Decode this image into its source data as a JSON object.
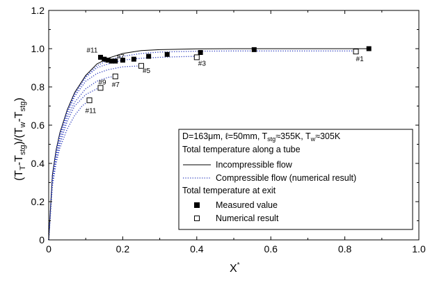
{
  "chart_data": {
    "type": "line",
    "xlabel": "X*",
    "ylabel": "(T_T-T_stg)/(T_w-T_stg)",
    "xlim": [
      0,
      1.0
    ],
    "ylim": [
      0,
      1.2
    ],
    "x_ticks": [
      "0",
      "0.2",
      "0.4",
      "0.6",
      "0.8",
      "1.0"
    ],
    "y_ticks": [
      "0",
      "0.2",
      "0.4",
      "0.6",
      "0.8",
      "1.0",
      "1.2"
    ],
    "grid": false,
    "legend": {
      "position": "bottom-right",
      "header": "D=163μm, ℓ=50mm, T_stg≈355K, T_w≈305K",
      "group1_title": "Total temperature along a tube",
      "group2_title": "Total temperature at exit",
      "entries": [
        {
          "label": "Incompressible flow",
          "marker": "solid-line"
        },
        {
          "label": "Compressible flow (numerical result)",
          "marker": "dotted-line"
        },
        {
          "label": "Measured value",
          "marker": "filled-square"
        },
        {
          "label": "Numerical result",
          "marker": "open-square"
        }
      ]
    },
    "series": [
      {
        "name": "Incompressible flow",
        "style": "solid",
        "color": "#000000",
        "x": [
          0,
          0.01,
          0.02,
          0.03,
          0.05,
          0.07,
          0.1,
          0.13,
          0.16,
          0.2,
          0.25,
          0.3,
          0.4,
          0.5,
          0.6,
          0.7,
          0.8,
          0.87
        ],
        "y": [
          0,
          0.34,
          0.47,
          0.56,
          0.68,
          0.77,
          0.86,
          0.92,
          0.95,
          0.975,
          0.99,
          0.995,
          0.999,
          1.0,
          1.0,
          1.0,
          1.0,
          1.0
        ]
      },
      {
        "name": "Compressible flow (numerical result) #11",
        "style": "dotted",
        "color": "#2233bb",
        "x": [
          0,
          0.01,
          0.02,
          0.03,
          0.05,
          0.07,
          0.09,
          0.11
        ],
        "y": [
          0,
          0.28,
          0.4,
          0.48,
          0.58,
          0.65,
          0.7,
          0.73
        ]
      },
      {
        "name": "Compressible flow (numerical result) #9",
        "style": "dotted",
        "color": "#2233bb",
        "x": [
          0,
          0.01,
          0.02,
          0.03,
          0.05,
          0.07,
          0.1,
          0.13,
          0.14
        ],
        "y": [
          0,
          0.3,
          0.42,
          0.5,
          0.62,
          0.7,
          0.76,
          0.79,
          0.8
        ]
      },
      {
        "name": "Compressible flow (numerical result) #7",
        "style": "dotted",
        "color": "#2233bb",
        "x": [
          0,
          0.01,
          0.02,
          0.03,
          0.05,
          0.07,
          0.1,
          0.13,
          0.16,
          0.18
        ],
        "y": [
          0,
          0.31,
          0.44,
          0.52,
          0.64,
          0.72,
          0.79,
          0.83,
          0.85,
          0.855
        ]
      },
      {
        "name": "Compressible flow (numerical result) #5",
        "style": "dotted",
        "color": "#2233bb",
        "x": [
          0,
          0.01,
          0.02,
          0.03,
          0.05,
          0.07,
          0.1,
          0.13,
          0.16,
          0.2,
          0.25
        ],
        "y": [
          0,
          0.32,
          0.45,
          0.54,
          0.66,
          0.75,
          0.83,
          0.87,
          0.89,
          0.905,
          0.91
        ]
      },
      {
        "name": "Compressible flow (numerical result) #3",
        "style": "dotted",
        "color": "#2233bb",
        "x": [
          0,
          0.01,
          0.02,
          0.03,
          0.05,
          0.07,
          0.1,
          0.13,
          0.16,
          0.2,
          0.25,
          0.3,
          0.35,
          0.4
        ],
        "y": [
          0,
          0.33,
          0.46,
          0.55,
          0.67,
          0.76,
          0.85,
          0.9,
          0.92,
          0.94,
          0.95,
          0.955,
          0.958,
          0.96
        ]
      },
      {
        "name": "Compressible flow (numerical result) #1",
        "style": "dotted",
        "color": "#2233bb",
        "x": [
          0,
          0.01,
          0.02,
          0.03,
          0.05,
          0.07,
          0.1,
          0.13,
          0.16,
          0.2,
          0.25,
          0.3,
          0.4,
          0.5,
          0.6,
          0.7,
          0.83
        ],
        "y": [
          0,
          0.335,
          0.465,
          0.555,
          0.675,
          0.765,
          0.855,
          0.91,
          0.94,
          0.96,
          0.975,
          0.982,
          0.987,
          0.988,
          0.988,
          0.988,
          0.988
        ]
      },
      {
        "name": "Measured value",
        "style": "filled-square",
        "x": [
          0.14,
          0.15,
          0.16,
          0.17,
          0.18,
          0.2,
          0.23,
          0.27,
          0.32,
          0.41,
          0.555,
          0.865
        ],
        "y": [
          0.955,
          0.945,
          0.94,
          0.935,
          0.935,
          0.94,
          0.945,
          0.96,
          0.97,
          0.98,
          0.995,
          1.0
        ]
      },
      {
        "name": "Numerical result",
        "style": "open-square",
        "x": [
          0.11,
          0.14,
          0.18,
          0.25,
          0.4,
          0.83
        ],
        "y": [
          0.73,
          0.795,
          0.855,
          0.91,
          0.955,
          0.985
        ]
      }
    ],
    "annotations": [
      {
        "text": "#11",
        "x": 0.14,
        "y": 0.955
      },
      {
        "text": "#7",
        "x": 0.18,
        "y": 0.935
      },
      {
        "text": "#11",
        "x": 0.11,
        "y": 0.73
      },
      {
        "text": "#9",
        "x": 0.14,
        "y": 0.795
      },
      {
        "text": "#7",
        "x": 0.18,
        "y": 0.855
      },
      {
        "text": "#5",
        "x": 0.25,
        "y": 0.91
      },
      {
        "text": "#3",
        "x": 0.4,
        "y": 0.955
      },
      {
        "text": "#1",
        "x": 0.83,
        "y": 0.985
      }
    ]
  }
}
